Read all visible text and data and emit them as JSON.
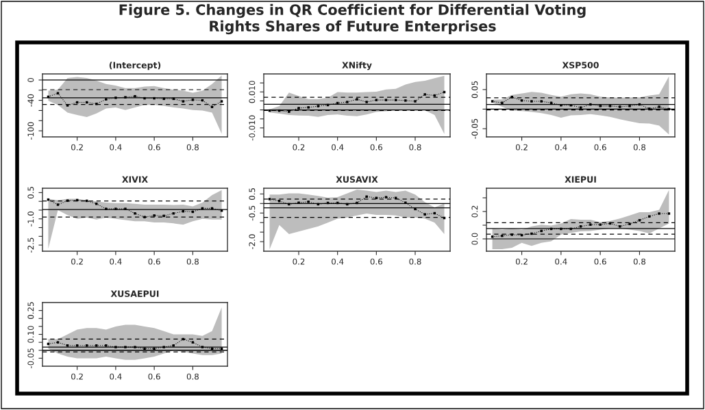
{
  "chart_data": [
    {
      "type": "line",
      "title": "(Intercept)",
      "annotations": [
        "Figure 5. Changes in QR Coefficient for Differential Voting",
        "Rights Shares of Future Enterprises"
      ],
      "x": [
        0.05,
        0.1,
        0.15,
        0.2,
        0.25,
        0.3,
        0.35,
        0.4,
        0.45,
        0.5,
        0.55,
        0.6,
        0.65,
        0.7,
        0.75,
        0.8,
        0.85,
        0.9,
        0.95
      ],
      "xlim": [
        0.02,
        0.98
      ],
      "xticks": [
        0.2,
        0.4,
        0.6,
        0.8
      ],
      "ylim": [
        -112,
        12
      ],
      "yticks": [
        0,
        {
          "value": -20,
          "label": null
        },
        -40,
        {
          "value": -60,
          "label": null
        },
        {
          "value": -80,
          "label": null
        },
        -100
      ],
      "marker": "square",
      "line_style": "dotted",
      "series": [
        {
          "color": "#000000",
          "values": [
            -33,
            -26,
            -50,
            -44,
            -44,
            -47,
            -38,
            -35,
            -34,
            -32,
            -36,
            -36,
            -37,
            -37,
            -42,
            -39,
            -40,
            -53,
            -42
          ],
          "upper": [
            -21,
            -19,
            4,
            6,
            4,
            -1,
            -8,
            -11,
            -16,
            -16,
            -13,
            -12,
            -16,
            -19,
            -21,
            -25,
            -21,
            -8,
            9
          ],
          "lower": [
            -41,
            -49,
            -64,
            -69,
            -73,
            -66,
            -56,
            -54,
            -59,
            -54,
            -49,
            -49,
            -51,
            -54,
            -56,
            -59,
            -60,
            -64,
            -106
          ]
        }
      ],
      "ref_lines": [
        {
          "axis": "y",
          "value": 0,
          "line_style": "solid",
          "color": "#000000"
        },
        {
          "axis": "y",
          "value": -35,
          "line_style": "solid",
          "color": "#000000"
        },
        {
          "axis": "y",
          "value": -19,
          "line_style": "dashed",
          "color": "#000000"
        },
        {
          "axis": "y",
          "value": -48,
          "line_style": "dashed",
          "color": "#000000"
        }
      ]
    },
    {
      "type": "line",
      "title": "XNifty",
      "x": [
        0.05,
        0.1,
        0.15,
        0.2,
        0.25,
        0.3,
        0.35,
        0.4,
        0.45,
        0.5,
        0.55,
        0.6,
        0.65,
        0.7,
        0.75,
        0.8,
        0.85,
        0.9,
        0.95
      ],
      "xlim": [
        0.02,
        0.98
      ],
      "xticks": [
        0.2,
        0.4,
        0.6,
        0.8
      ],
      "ylim": [
        -0.015,
        0.02
      ],
      "yticks": [
        {
          "value": -0.01,
          "label": "-0.010"
        },
        {
          "value": -0.005,
          "label": null
        },
        {
          "value": 0,
          "label": null
        },
        {
          "value": 0.005,
          "label": null
        },
        {
          "value": 0.01,
          "label": "0.010"
        },
        {
          "value": 0.015,
          "label": null
        }
      ],
      "marker": "square",
      "line_style": "dotted",
      "series": [
        {
          "color": "#000000",
          "values": [
            -0.0004,
            -0.0004,
            -0.001,
            0.001,
            0.0014,
            0.0021,
            0.0027,
            0.0038,
            0.0044,
            0.0059,
            0.0044,
            0.0055,
            0.0055,
            0.0055,
            0.0052,
            0.0048,
            0.0086,
            0.008,
            0.0099
          ],
          "upper": [
            0.0003,
            0.0021,
            0.0096,
            0.0077,
            0.006,
            0.006,
            0.0068,
            0.0099,
            0.0096,
            0.0096,
            0.0099,
            0.0101,
            0.0113,
            0.0117,
            0.0141,
            0.0155,
            0.0162,
            0.0176,
            0.019
          ],
          "lower": [
            -0.0014,
            -0.0021,
            -0.0028,
            -0.0031,
            -0.0032,
            -0.0039,
            -0.0028,
            -0.0025,
            -0.0032,
            -0.0035,
            -0.0025,
            -0.0011,
            -0.0007,
            -0.0003,
            -0.0003,
            -0.0003,
            -0.0003,
            -0.0028,
            -0.0134
          ]
        }
      ],
      "ref_lines": [
        {
          "axis": "y",
          "value": 0,
          "line_style": "solid",
          "color": "#000000"
        },
        {
          "axis": "y",
          "value": 0.0031,
          "line_style": "solid",
          "color": "#000000"
        },
        {
          "axis": "y",
          "value": 0.007,
          "line_style": "dashed",
          "color": "#000000"
        },
        {
          "axis": "y",
          "value": -0.0003,
          "line_style": "dashed",
          "color": "#000000"
        }
      ]
    },
    {
      "type": "line",
      "title": "XSP500",
      "x": [
        0.05,
        0.1,
        0.15,
        0.2,
        0.25,
        0.3,
        0.35,
        0.4,
        0.45,
        0.5,
        0.55,
        0.6,
        0.65,
        0.7,
        0.75,
        0.8,
        0.85,
        0.9,
        0.95
      ],
      "xlim": [
        0.02,
        0.98
      ],
      "xticks": [
        0.2,
        0.4,
        0.6,
        0.8
      ],
      "ylim": [
        -0.071,
        0.09
      ],
      "yticks": [
        -0.05,
        {
          "value": 0,
          "label": null
        },
        0.05
      ],
      "marker": "square",
      "line_style": "dotted",
      "series": [
        {
          "color": "#000000",
          "values": [
            0.02,
            0.016,
            0.031,
            0.022,
            0.02,
            0.02,
            0.016,
            0.01,
            0.01,
            0.004,
            0.012,
            0.008,
            0.008,
            0.006,
            0.008,
            0.012,
            0.001,
            0.006,
            0.0
          ],
          "upper": [
            0.024,
            0.025,
            0.036,
            0.04,
            0.044,
            0.042,
            0.036,
            0.032,
            0.038,
            0.04,
            0.038,
            0.032,
            0.03,
            0.029,
            0.03,
            0.03,
            0.035,
            0.038,
            0.084
          ],
          "lower": [
            0.017,
            0.006,
            -0.004,
            -0.005,
            -0.007,
            -0.01,
            -0.015,
            -0.022,
            -0.016,
            -0.015,
            -0.013,
            -0.016,
            -0.02,
            -0.026,
            -0.031,
            -0.036,
            -0.037,
            -0.042,
            -0.065
          ]
        }
      ],
      "ref_lines": [
        {
          "axis": "y",
          "value": 0,
          "line_style": "solid",
          "color": "#000000"
        },
        {
          "axis": "y",
          "value": 0.012,
          "line_style": "solid",
          "color": "#000000"
        },
        {
          "axis": "y",
          "value": 0.029,
          "line_style": "dashed",
          "color": "#000000"
        },
        {
          "axis": "y",
          "value": -0.002,
          "line_style": "dashed",
          "color": "#000000"
        }
      ]
    },
    {
      "type": "line",
      "title": "XIVIX",
      "x": [
        0.05,
        0.1,
        0.15,
        0.2,
        0.25,
        0.3,
        0.35,
        0.4,
        0.45,
        0.5,
        0.55,
        0.6,
        0.65,
        0.7,
        0.75,
        0.8,
        0.85,
        0.9,
        0.95
      ],
      "xlim": [
        0.02,
        0.98
      ],
      "xticks": [
        0.2,
        0.4,
        0.6,
        0.8
      ],
      "ylim": [
        -2.85,
        0.75
      ],
      "yticks": [
        -2.5,
        {
          "value": -2.0,
          "label": null
        },
        {
          "value": -1.5,
          "label": null
        },
        {
          "value": -1.0,
          "label": "-1.0"
        },
        {
          "value": -0.5,
          "label": null
        },
        {
          "value": 0,
          "label": null
        },
        0.5
      ],
      "marker": "square",
      "line_style": "dotted",
      "series": [
        {
          "color": "#000000",
          "values": [
            0.1,
            -0.19,
            0.04,
            0.07,
            0.03,
            -0.14,
            -0.43,
            -0.43,
            -0.43,
            -0.69,
            -0.9,
            -0.81,
            -0.83,
            -0.69,
            -0.57,
            -0.6,
            -0.4,
            -0.4,
            -0.53
          ],
          "upper": [
            0.14,
            0.07,
            0.14,
            0.14,
            0.07,
            0,
            -0.07,
            -0.1,
            -0.1,
            -0.14,
            -0.19,
            -0.19,
            -0.19,
            -0.21,
            -0.19,
            -0.29,
            -0.07,
            0.36,
            0.64
          ],
          "lower": [
            -2.71,
            -0.5,
            -0.79,
            -1.0,
            -0.93,
            -1.04,
            -0.93,
            -1.0,
            -1.07,
            -1.14,
            -1.14,
            -1.21,
            -1.21,
            -1.26,
            -1.33,
            -1.14,
            -1.0,
            -1.04,
            -1.04
          ]
        }
      ],
      "ref_lines": [
        {
          "axis": "y",
          "value": -0.47,
          "line_style": "solid",
          "color": "#000000"
        },
        {
          "axis": "y",
          "value": 0.02,
          "line_style": "dashed",
          "color": "#000000"
        },
        {
          "axis": "y",
          "value": -0.9,
          "line_style": "dashed",
          "color": "#000000"
        }
      ]
    },
    {
      "type": "line",
      "title": "XUSAVIX",
      "x": [
        0.05,
        0.1,
        0.15,
        0.2,
        0.25,
        0.3,
        0.35,
        0.4,
        0.45,
        0.5,
        0.55,
        0.6,
        0.65,
        0.7,
        0.75,
        0.8,
        0.85,
        0.9,
        0.95
      ],
      "xlim": [
        0.02,
        0.98
      ],
      "xticks": [
        0.2,
        0.4,
        0.6,
        0.8
      ],
      "ylim": [
        -2.5,
        0.8
      ],
      "yticks": [
        {
          "value": -2.0,
          "label": "-2.0"
        },
        {
          "value": -1.5,
          "label": null
        },
        {
          "value": -1.0,
          "label": null
        },
        -0.5,
        {
          "value": 0,
          "label": null
        },
        0.5
      ],
      "marker": "square",
      "line_style": "dotted",
      "series": [
        {
          "color": "#000000",
          "values": [
            0.23,
            0.13,
            -0.04,
            0.04,
            0.09,
            -0.04,
            0.03,
            0.03,
            -0.04,
            0.03,
            0.36,
            0.29,
            0.33,
            0.29,
            0.04,
            -0.29,
            -0.57,
            -0.51,
            -0.76
          ],
          "upper": [
            0.47,
            0.47,
            0.53,
            0.53,
            0.47,
            0.4,
            0.31,
            0.33,
            0.53,
            0.73,
            0.67,
            0.6,
            0.67,
            0.6,
            0.67,
            0.47,
            0.07,
            -0.2,
            0
          ],
          "lower": [
            -2.4,
            -1.13,
            -1.6,
            -1.47,
            -1.33,
            -1.2,
            -1.0,
            -0.8,
            -0.73,
            -0.63,
            -0.53,
            -0.6,
            -0.6,
            -0.63,
            -0.73,
            -0.73,
            -0.8,
            -1.0,
            -1.6
          ]
        }
      ],
      "ref_lines": [
        {
          "axis": "y",
          "value": 0,
          "line_style": "solid",
          "color": "#000000"
        },
        {
          "axis": "y",
          "value": -0.23,
          "line_style": "solid",
          "color": "#000000"
        },
        {
          "axis": "y",
          "value": 0.23,
          "line_style": "dashed",
          "color": "#000000"
        },
        {
          "axis": "y",
          "value": -0.73,
          "line_style": "dashed",
          "color": "#000000"
        }
      ]
    },
    {
      "type": "line",
      "title": "XIEPUI",
      "x": [
        0.05,
        0.1,
        0.15,
        0.2,
        0.25,
        0.3,
        0.35,
        0.4,
        0.45,
        0.5,
        0.55,
        0.6,
        0.65,
        0.7,
        0.75,
        0.8,
        0.85,
        0.9,
        0.95
      ],
      "xlim": [
        0.02,
        0.98
      ],
      "xticks": [
        0.2,
        0.4,
        0.6,
        0.8
      ],
      "ylim": [
        -0.09,
        0.37
      ],
      "yticks": [
        {
          "value": 0.0,
          "label": "0.0"
        },
        {
          "value": 0.1,
          "label": null
        },
        0.2,
        {
          "value": 0.3,
          "label": null
        }
      ],
      "marker": "square",
      "line_style": "dotted",
      "series": [
        {
          "color": "#000000",
          "values": [
            0.016,
            0.022,
            0.031,
            0.027,
            0.038,
            0.058,
            0.073,
            0.073,
            0.073,
            0.091,
            0.104,
            0.104,
            0.113,
            0.091,
            0.109,
            0.136,
            0.164,
            0.185,
            0.185
          ],
          "upper": [
            0.076,
            0.067,
            0.076,
            0.067,
            0.091,
            0.104,
            0.098,
            0.113,
            0.145,
            0.14,
            0.14,
            0.122,
            0.131,
            0.149,
            0.171,
            0.195,
            0.195,
            0.213,
            0.358
          ],
          "lower": [
            -0.075,
            -0.075,
            -0.065,
            -0.029,
            -0.051,
            -0.029,
            -0.018,
            0.031,
            0.044,
            0.055,
            0.058,
            0.067,
            0.076,
            0.076,
            0.067,
            0.058,
            0.04,
            0.076,
            0.113
          ]
        }
      ],
      "ref_lines": [
        {
          "axis": "y",
          "value": 0,
          "line_style": "solid",
          "color": "#000000"
        },
        {
          "axis": "y",
          "value": 0.076,
          "line_style": "solid",
          "color": "#000000"
        },
        {
          "axis": "y",
          "value": 0.118,
          "line_style": "dashed",
          "color": "#000000"
        },
        {
          "axis": "y",
          "value": 0.035,
          "line_style": "dashed",
          "color": "#000000"
        }
      ]
    },
    {
      "type": "line",
      "title": "XUSAEPUI",
      "x": [
        0.05,
        0.1,
        0.15,
        0.2,
        0.25,
        0.3,
        0.35,
        0.4,
        0.45,
        0.5,
        0.55,
        0.6,
        0.65,
        0.7,
        0.75,
        0.8,
        0.85,
        0.9,
        0.95
      ],
      "xlim": [
        0.02,
        0.98
      ],
      "xticks": [
        0.2,
        0.4,
        0.6,
        0.8
      ],
      "ylim": [
        -0.1,
        0.3
      ],
      "yticks": [
        -0.05,
        {
          "value": 0,
          "label": null
        },
        {
          "value": 0.05,
          "label": null
        },
        {
          "value": 0.1,
          "label": "0.10"
        },
        {
          "value": 0.15,
          "label": null
        },
        {
          "value": 0.2,
          "label": null
        },
        0.25
      ],
      "marker": "square",
      "line_style": "dotted",
      "series": [
        {
          "color": "#000000",
          "values": [
            0.04,
            0.05,
            0.03,
            0.03,
            0.03,
            0.03,
            0.03,
            0.02,
            0.02,
            0.02,
            0.01,
            0.01,
            0.02,
            0.03,
            0.07,
            0.05,
            0.02,
            0.01,
            0.01
          ],
          "upper": [
            0.07,
            0.07,
            0.1,
            0.13,
            0.14,
            0.14,
            0.13,
            0.15,
            0.16,
            0.16,
            0.15,
            0.14,
            0.12,
            0.1,
            0.1,
            0.1,
            0.09,
            0.12,
            0.27
          ],
          "lower": [
            0.01,
            -0.02,
            -0.04,
            -0.05,
            -0.05,
            -0.05,
            -0.04,
            -0.05,
            -0.06,
            -0.06,
            -0.05,
            -0.04,
            -0.02,
            0.0,
            -0.01,
            -0.02,
            -0.03,
            -0.03,
            -0.02
          ]
        }
      ],
      "ref_lines": [
        {
          "axis": "y",
          "value": 0,
          "line_style": "solid",
          "color": "#000000"
        },
        {
          "axis": "y",
          "value": 0.02,
          "line_style": "solid",
          "color": "#000000"
        },
        {
          "axis": "y",
          "value": 0.07,
          "line_style": "dashed",
          "color": "#000000"
        },
        {
          "axis": "y",
          "value": -0.01,
          "line_style": "dashed",
          "color": "#000000"
        }
      ]
    }
  ]
}
